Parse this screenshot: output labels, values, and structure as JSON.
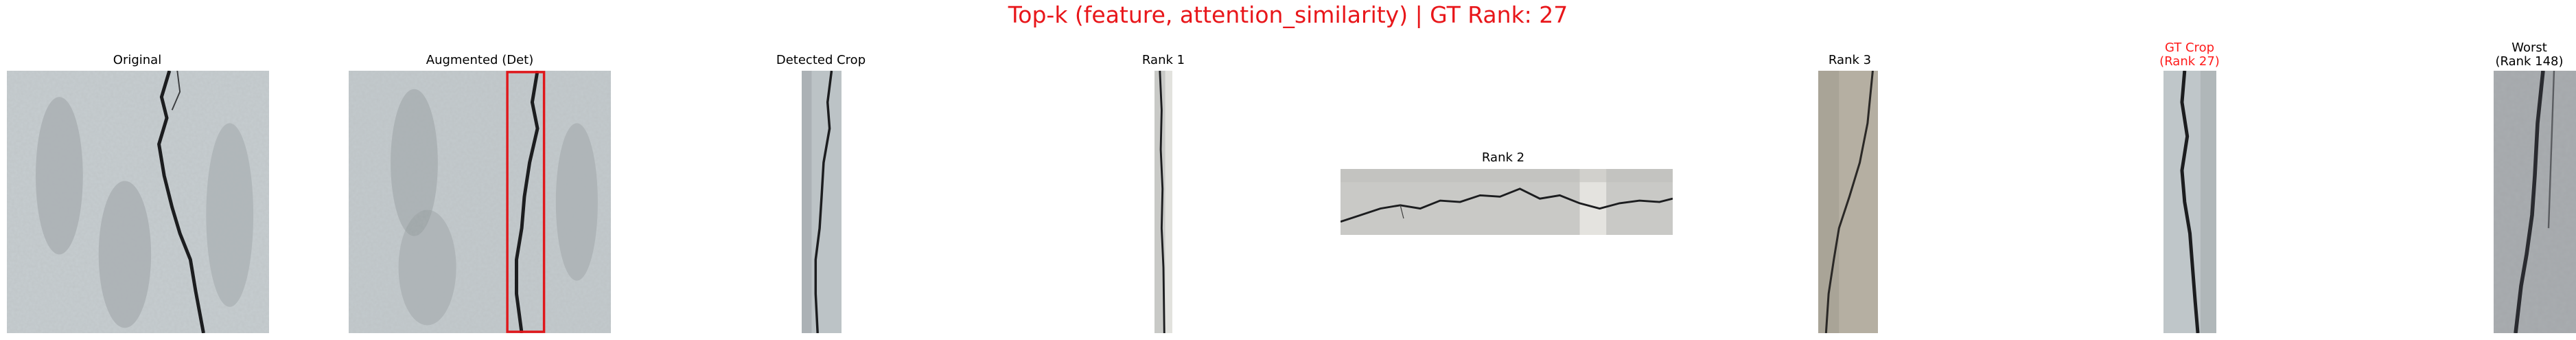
{
  "figure": {
    "title": "Top-k (feature, attention_similarity) | GT Rank: 27",
    "title_color": "#e8161a"
  },
  "panels": {
    "original": {
      "title": "Original"
    },
    "augmented": {
      "title": "Augmented (Det)",
      "box_color": "#e0161a"
    },
    "detected": {
      "title": "Detected Crop"
    },
    "rank1": {
      "title": "Rank 1"
    },
    "rank2": {
      "title": "Rank 2"
    },
    "rank3": {
      "title": "Rank 3"
    },
    "gt_crop": {
      "title": "GT Crop\n(Rank 27)",
      "title_color": "#ff1a1a"
    },
    "worst": {
      "title": "Worst\n(Rank 148)"
    }
  },
  "colors": {
    "concrete_light": "#c9cfd1",
    "concrete_mid": "#aeb4b6",
    "concrete_dark": "#7b8083",
    "crack": "#1c1d1f",
    "beige": "#b8b2a4"
  }
}
